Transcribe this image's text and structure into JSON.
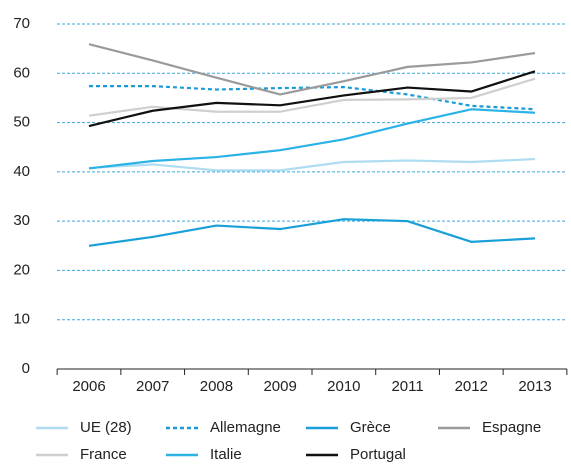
{
  "chart_data": {
    "type": "line",
    "x": [
      "2006",
      "2007",
      "2008",
      "2009",
      "2010",
      "2011",
      "2012",
      "2013"
    ],
    "series": [
      {
        "name": "UE (28)",
        "color": "#b0dcf2",
        "dash": false,
        "values": [
          40.8,
          41.5,
          40.3,
          40.3,
          42.0,
          42.3,
          42.0,
          42.6
        ]
      },
      {
        "name": "Allemagne",
        "color": "#1a9ad6",
        "dash": true,
        "values": [
          57.4,
          57.4,
          56.7,
          57.0,
          57.2,
          55.7,
          53.4,
          52.7
        ]
      },
      {
        "name": "Grèce",
        "color": "#1aa0d8",
        "dash": false,
        "values": [
          25.0,
          26.8,
          29.1,
          28.4,
          30.4,
          30.0,
          25.8,
          26.5
        ]
      },
      {
        "name": "Espagne",
        "color": "#9a9a9a",
        "dash": false,
        "values": [
          65.9,
          62.6,
          59.1,
          55.7,
          58.4,
          61.3,
          62.2,
          64.1
        ]
      },
      {
        "name": "France",
        "color": "#cfcfcf",
        "dash": false,
        "values": [
          51.4,
          53.2,
          52.2,
          52.2,
          54.6,
          54.7,
          55.0,
          58.9
        ]
      },
      {
        "name": "Italie",
        "color": "#2bb3e6",
        "dash": false,
        "values": [
          40.7,
          42.2,
          43.0,
          44.4,
          46.6,
          49.8,
          52.7,
          52.0
        ]
      },
      {
        "name": "Portugal",
        "color": "#111111",
        "dash": false,
        "values": [
          49.3,
          52.4,
          54.0,
          53.5,
          55.5,
          57.1,
          56.3,
          60.4
        ]
      }
    ],
    "ylim": [
      0,
      70
    ],
    "yticks": [
      0,
      10,
      20,
      30,
      40,
      50,
      60,
      70
    ],
    "grid": true,
    "legend": "bottom"
  }
}
